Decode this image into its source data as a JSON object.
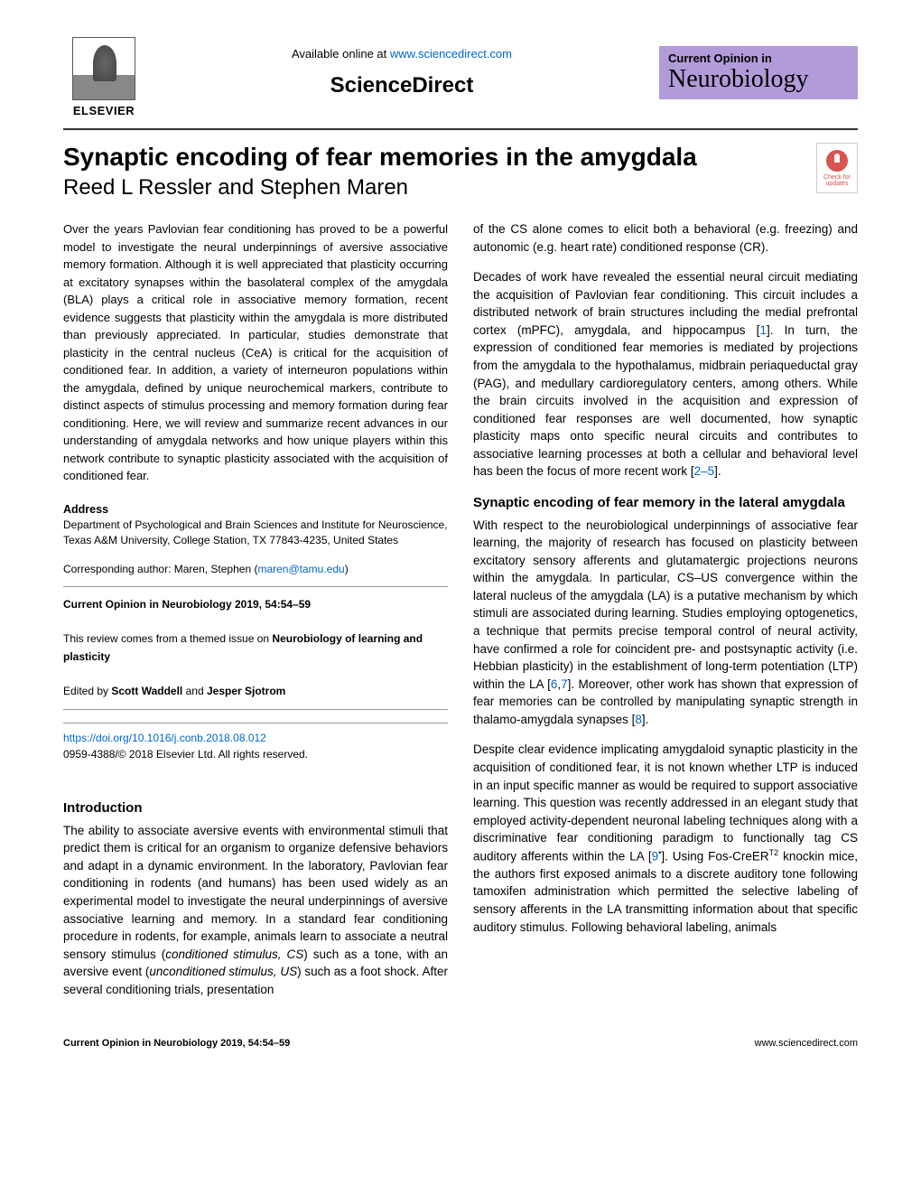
{
  "header": {
    "available_text": "Available online at ",
    "available_url": "www.sciencedirect.com",
    "sciencedirect": "ScienceDirect",
    "elsevier": "ELSEVIER",
    "journal_top": "Current Opinion in",
    "journal_bottom": "Neurobiology",
    "check_updates": "Check for updates"
  },
  "title": "Synaptic encoding of fear memories in the amygdala",
  "authors": "Reed L Ressler and Stephen Maren",
  "abstract": "Over the years Pavlovian fear conditioning has proved to be a powerful model to investigate the neural underpinnings of aversive associative memory formation. Although it is well appreciated that plasticity occurring at excitatory synapses within the basolateral complex of the amygdala (BLA) plays a critical role in associative memory formation, recent evidence suggests that plasticity within the amygdala is more distributed than previously appreciated. In particular, studies demonstrate that plasticity in the central nucleus (CeA) is critical for the acquisition of conditioned fear. In addition, a variety of interneuron populations within the amygdala, defined by unique neurochemical markers, contribute to distinct aspects of stimulus processing and memory formation during fear conditioning. Here, we will review and summarize recent advances in our understanding of amygdala networks and how unique players within this network contribute to synaptic plasticity associated with the acquisition of conditioned fear.",
  "address": {
    "label": "Address",
    "text": "Department of Psychological and Brain Sciences and Institute for Neuroscience, Texas A&M University, College Station, TX 77843-4235, United States"
  },
  "corresponding": {
    "prefix": "Corresponding author: Maren, Stephen (",
    "email": "maren@tamu.edu",
    "suffix": ")"
  },
  "meta": {
    "citation": "Current Opinion in Neurobiology 2019, 54:54–59",
    "review_line_1": "This review comes from a themed issue on ",
    "review_bold": "Neurobiology of learning and plasticity",
    "edited_prefix": "Edited by ",
    "editor1": "Scott Waddell",
    "and": " and ",
    "editor2": "Jesper Sjotrom"
  },
  "doi": {
    "url": "https://doi.org/10.1016/j.conb.2018.08.012",
    "copyright": "0959-4388/© 2018 Elsevier Ltd. All rights reserved."
  },
  "sections": {
    "intro_heading": "Introduction",
    "intro_p1_a": "The ability to associate aversive events with environmental stimuli that predict them is critical for an organism to organize defensive behaviors and adapt in a dynamic environment. In the laboratory, Pavlovian fear conditioning in rodents (and humans) has been used widely as an experimental model to investigate the neural underpinnings of aversive associative learning and memory. In a standard fear conditioning procedure in rodents, for example, animals learn to associate a neutral sensory stimulus (",
    "intro_cs_italic": "conditioned stimulus",
    "intro_cs_abbr": ", CS",
    "intro_p1_b": ") such as a tone, with an aversive event (",
    "intro_us_italic": "unconditioned stimulus",
    "intro_us_abbr": ", US",
    "intro_p1_c": ") such as a foot shock. After several conditioning trials, presentation",
    "col2_p1": "of the CS alone comes to elicit both a behavioral (e.g. freezing) and autonomic (e.g. heart rate) conditioned response (CR).",
    "col2_p2_a": "Decades of work have revealed the essential neural circuit mediating the acquisition of Pavlovian fear conditioning. This circuit includes a distributed network of brain structures including the medial prefrontal cortex (mPFC), amygdala, and hippocampus [",
    "ref1": "1",
    "col2_p2_b": "]. In turn, the expression of conditioned fear memories is mediated by projections from the amygdala to the hypothalamus, midbrain periaqueductal gray (PAG), and medullary cardioregulatory centers, among others. While the brain circuits involved in the acquisition and expression of conditioned fear responses are well documented, how synaptic plasticity maps onto specific neural circuits and contributes to associative learning processes at both a cellular and behavioral level has been the focus of more recent work [",
    "ref2_5": "2–5",
    "col2_p2_c": "].",
    "synaptic_heading": "Synaptic encoding of fear memory in the lateral amygdala",
    "col2_p3_a": "With respect to the neurobiological underpinnings of associative fear learning, the majority of research has focused on plasticity between excitatory sensory afferents and glutamatergic projections neurons within the amygdala. In particular, CS–US convergence within the lateral nucleus of the amygdala (LA) is a putative mechanism by which stimuli are associated during learning. Studies employing optogenetics, a technique that permits precise temporal control of neural activity, have confirmed a role for coincident pre- and postsynaptic activity (i.e. Hebbian plasticity) in the establishment of long-term potentiation (LTP) within the LA [",
    "ref6": "6",
    "comma": ",",
    "ref7": "7",
    "col2_p3_b": "]. Moreover, other work has shown that expression of fear memories can be controlled by manipulating synaptic strength in thalamo-amygdala synapses [",
    "ref8": "8",
    "col2_p3_c": "].",
    "col2_p4_a": "Despite clear evidence implicating amygdaloid synaptic plasticity in the acquisition of conditioned fear, it is not known whether LTP is induced in an input specific manner as would be required to support associative learning. This question was recently addressed in an elegant study that employed activity-dependent neuronal labeling techniques along with a discriminative fear conditioning paradigm to functionally tag CS auditory afferents within the LA [",
    "ref9": "9",
    "ref9_bullet": "•",
    "col2_p4_b": "]. Using Fos-CreER",
    "t2_sup": "T2",
    "col2_p4_c": " knockin mice, the authors first exposed animals to a discrete auditory tone following tamoxifen administration which permitted the selective labeling of sensory afferents in the LA transmitting information about that specific auditory stimulus. Following behavioral labeling, animals"
  },
  "footer": {
    "left": "Current Opinion in Neurobiology 2019, 54:54–59",
    "right": "www.sciencedirect.com"
  },
  "colors": {
    "link": "#0066cc",
    "badge_bg": "#b19cd9",
    "text": "#000000",
    "rule": "#333333",
    "check_red": "#d9534f"
  },
  "typography": {
    "title_fontsize": 28,
    "authors_fontsize": 24,
    "body_fontsize": 13.5,
    "abstract_fontsize": 13,
    "meta_fontsize": 12,
    "footer_fontsize": 11
  }
}
